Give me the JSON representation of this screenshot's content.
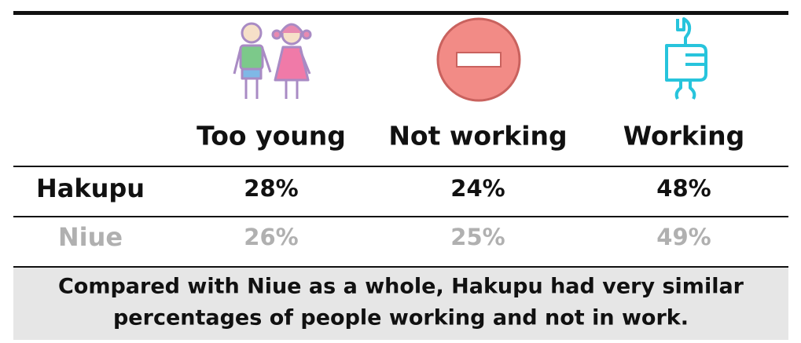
{
  "table": {
    "columns": [
      "Too young",
      "Not working",
      "Working"
    ],
    "rows": [
      {
        "label": "Hakupu",
        "values": [
          "28%",
          "24%",
          "48%"
        ]
      },
      {
        "label": "Niue",
        "values": [
          "26%",
          "25%",
          "49%"
        ]
      }
    ]
  },
  "note": [
    "Compared with Niue as a whole, Hakupu had very similar",
    "percentages of people working and not in work."
  ]
}
